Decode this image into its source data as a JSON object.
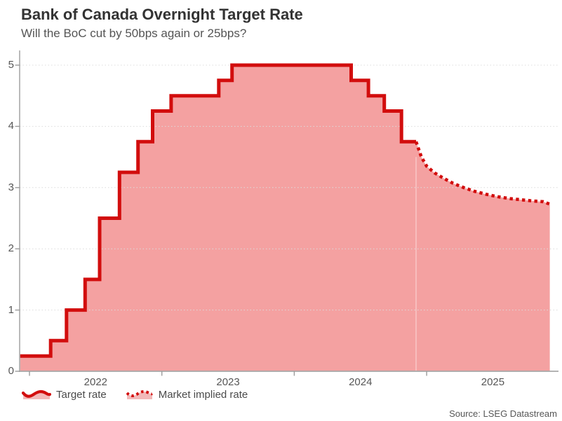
{
  "chart_data": {
    "type": "area",
    "title": "Bank of Canada Overnight Target Rate",
    "subtitle": "Will the BoC cut by 50bps again or 25bps?",
    "source": "Source: LSEG Datastream",
    "xlabel": "",
    "ylabel": "",
    "x_unit": "decimal_year",
    "xlim": [
      2021.93,
      2025.93
    ],
    "ylim": [
      0,
      5
    ],
    "yticks": [
      0,
      1,
      2,
      3,
      4,
      5
    ],
    "xticks": [
      2022,
      2023,
      2024,
      2025
    ],
    "grid": "horizontal-dotted",
    "legend_position": "bottom-left",
    "series": [
      {
        "name": "Target rate",
        "style": "solid-step",
        "points": [
          [
            2021.93,
            0.25
          ],
          [
            2022.16,
            0.5
          ],
          [
            2022.28,
            1.0
          ],
          [
            2022.42,
            1.5
          ],
          [
            2022.53,
            2.5
          ],
          [
            2022.68,
            3.25
          ],
          [
            2022.82,
            3.75
          ],
          [
            2022.93,
            4.25
          ],
          [
            2023.07,
            4.5
          ],
          [
            2023.43,
            4.75
          ],
          [
            2023.53,
            5.0
          ],
          [
            2024.43,
            4.75
          ],
          [
            2024.56,
            4.5
          ],
          [
            2024.68,
            4.25
          ],
          [
            2024.81,
            3.75
          ],
          [
            2024.92,
            3.75
          ]
        ]
      },
      {
        "name": "Market implied rate",
        "style": "dotted-line",
        "points": [
          [
            2024.92,
            3.75
          ],
          [
            2024.96,
            3.5
          ],
          [
            2025.0,
            3.35
          ],
          [
            2025.06,
            3.24
          ],
          [
            2025.13,
            3.15
          ],
          [
            2025.2,
            3.07
          ],
          [
            2025.28,
            3.0
          ],
          [
            2025.36,
            2.94
          ],
          [
            2025.45,
            2.89
          ],
          [
            2025.54,
            2.85
          ],
          [
            2025.63,
            2.82
          ],
          [
            2025.72,
            2.8
          ],
          [
            2025.81,
            2.78
          ],
          [
            2025.88,
            2.77
          ],
          [
            2025.93,
            2.73
          ]
        ]
      }
    ],
    "colors": {
      "line_red": "#d20d0d",
      "area_pink": "#f4a1a1",
      "grid_gray": "#dcdcdc",
      "axis_gray": "#a8a8a8",
      "tick_gray": "#9b9b9b",
      "text_gray": "#565656",
      "title_gray": "#333333"
    },
    "legend": {
      "items": [
        {
          "icon": "solid-wave-area-icon"
        },
        {
          "icon": "dotted-wave-area-icon"
        }
      ]
    }
  }
}
